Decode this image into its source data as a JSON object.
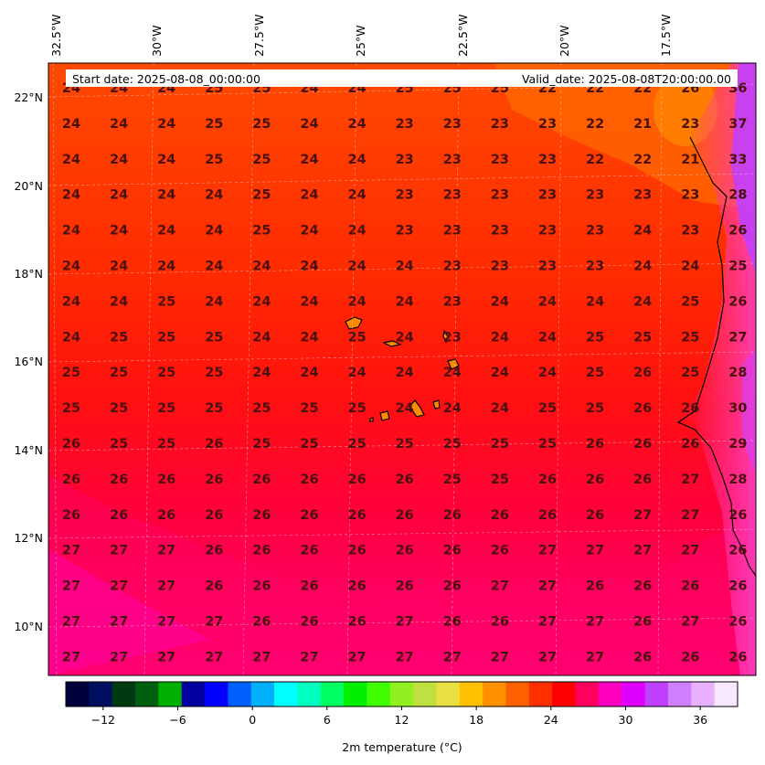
{
  "header": {
    "start_date": "Start date: 2025-08-08_00:00:00",
    "valid_date": "Valid_date: 2025-08-08T20:00:00.00"
  },
  "map": {
    "lon_labels": [
      "32.5°W",
      "30°W",
      "27.5°W",
      "25°W",
      "22.5°W",
      "20°W",
      "17.5°W"
    ],
    "lat_labels": [
      "22°N",
      "20°N",
      "18°N",
      "16°N",
      "14°N",
      "12°N",
      "10°N"
    ],
    "temperature_grid": [
      [
        "24",
        "24",
        "24",
        "25",
        "25",
        "24",
        "24",
        "25",
        "25",
        "25",
        "22",
        "22",
        "22",
        "26",
        "36"
      ],
      [
        "24",
        "24",
        "24",
        "25",
        "25",
        "24",
        "24",
        "23",
        "23",
        "23",
        "23",
        "22",
        "21",
        "23",
        "37"
      ],
      [
        "24",
        "24",
        "24",
        "25",
        "25",
        "24",
        "24",
        "23",
        "23",
        "23",
        "23",
        "22",
        "22",
        "21",
        "33"
      ],
      [
        "24",
        "24",
        "24",
        "24",
        "25",
        "24",
        "24",
        "23",
        "23",
        "23",
        "23",
        "23",
        "23",
        "23",
        "28"
      ],
      [
        "24",
        "24",
        "24",
        "24",
        "25",
        "24",
        "24",
        "23",
        "23",
        "23",
        "23",
        "23",
        "24",
        "23",
        "26"
      ],
      [
        "24",
        "24",
        "24",
        "24",
        "24",
        "24",
        "24",
        "24",
        "23",
        "23",
        "23",
        "23",
        "24",
        "24",
        "25"
      ],
      [
        "24",
        "24",
        "25",
        "24",
        "24",
        "24",
        "24",
        "24",
        "23",
        "24",
        "24",
        "24",
        "24",
        "25",
        "26"
      ],
      [
        "24",
        "25",
        "25",
        "25",
        "24",
        "24",
        "25",
        "24",
        "23",
        "24",
        "24",
        "25",
        "25",
        "25",
        "27"
      ],
      [
        "25",
        "25",
        "25",
        "25",
        "24",
        "24",
        "24",
        "24",
        "24",
        "24",
        "24",
        "25",
        "26",
        "25",
        "28"
      ],
      [
        "25",
        "25",
        "25",
        "25",
        "25",
        "25",
        "25",
        "24",
        "24",
        "24",
        "25",
        "25",
        "26",
        "26",
        "30"
      ],
      [
        "26",
        "25",
        "25",
        "26",
        "25",
        "25",
        "25",
        "25",
        "25",
        "25",
        "25",
        "26",
        "26",
        "26",
        "29"
      ],
      [
        "26",
        "26",
        "26",
        "26",
        "26",
        "26",
        "26",
        "26",
        "25",
        "25",
        "26",
        "26",
        "26",
        "27",
        "28"
      ],
      [
        "26",
        "26",
        "26",
        "26",
        "26",
        "26",
        "26",
        "26",
        "26",
        "26",
        "26",
        "26",
        "27",
        "27",
        "26"
      ],
      [
        "27",
        "27",
        "27",
        "26",
        "26",
        "26",
        "26",
        "26",
        "26",
        "26",
        "27",
        "27",
        "27",
        "27",
        "26"
      ],
      [
        "27",
        "27",
        "27",
        "26",
        "26",
        "26",
        "26",
        "26",
        "26",
        "27",
        "27",
        "26",
        "26",
        "26",
        "26"
      ],
      [
        "27",
        "27",
        "27",
        "27",
        "26",
        "26",
        "26",
        "27",
        "26",
        "26",
        "27",
        "27",
        "26",
        "27",
        "26"
      ],
      [
        "27",
        "27",
        "27",
        "27",
        "27",
        "27",
        "27",
        "27",
        "27",
        "27",
        "27",
        "27",
        "26",
        "26",
        "26"
      ]
    ]
  },
  "colorbar": {
    "ticks": [
      "−12",
      "−6",
      "0",
      "6",
      "12",
      "18",
      "24",
      "30",
      "36"
    ],
    "tick_values": [
      -12,
      -6,
      0,
      6,
      12,
      18,
      24,
      30,
      36
    ],
    "range": [
      -15,
      39
    ],
    "label": "2m temperature (°C)",
    "colors": [
      "#00003a",
      "#001060",
      "#003a10",
      "#006010",
      "#00b000",
      "#0000a0",
      "#0000ff",
      "#0060ff",
      "#00b0ff",
      "#00ffff",
      "#00ffc0",
      "#00ff60",
      "#00f000",
      "#40ff00",
      "#90f020",
      "#c0e040",
      "#e8e040",
      "#ffc000",
      "#ff9000",
      "#ff6000",
      "#ff3000",
      "#ff0000",
      "#ff0060",
      "#ff00c0",
      "#e000ff",
      "#c040ff",
      "#d080ff",
      "#e8b0ff",
      "#f8e8ff"
    ]
  }
}
